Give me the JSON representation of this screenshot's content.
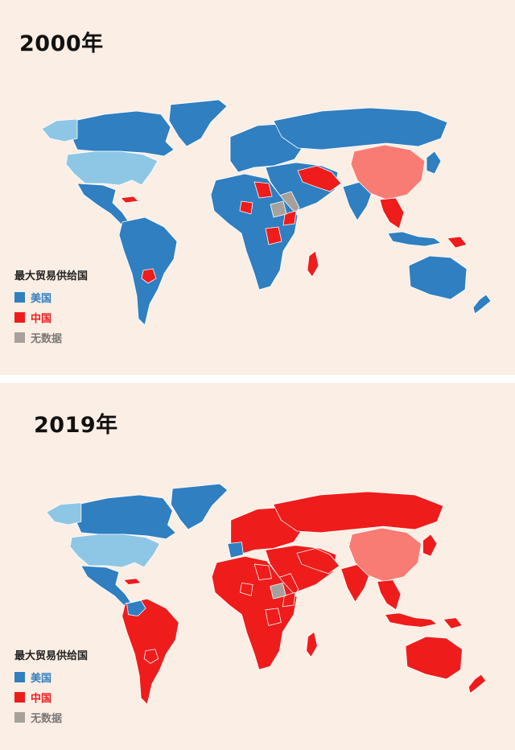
{
  "colors": {
    "usa": "#2f7fc1",
    "usa_self": "#8ec6e6",
    "china": "#ef1c1c",
    "china_self": "#f97c74",
    "no_data": "#a6a19c",
    "background": "#fbeee4"
  },
  "legend": {
    "title": "最大贸易供给国",
    "items": [
      {
        "label": "美国",
        "color": "#2f7fc1",
        "text_color": "#2f7fc1"
      },
      {
        "label": "中国",
        "color": "#ef1c1c",
        "text_color": "#ef1c1c"
      },
      {
        "label": "无数据",
        "color": "#a6a19c",
        "text_color": "#777777"
      }
    ]
  },
  "maps": [
    {
      "year_label": "2000年",
      "regions": {
        "north_america": "usa",
        "canada_greenland": "usa",
        "alaska": "usa_self",
        "usa_mainland": "usa_self",
        "central_america": "usa",
        "cuba": "china",
        "south_america": "usa",
        "paraguay": "china",
        "europe": "usa",
        "russia": "usa",
        "middle_east": "usa",
        "iran_region": "china",
        "saudi": "no_data",
        "africa": "usa",
        "africa_china_spots": "china",
        "africa_nodata": "no_data",
        "madagascar": "china",
        "india": "usa",
        "china": "china_self",
        "southeast_asia": "china",
        "japan_korea": "usa",
        "indonesia": "usa",
        "png": "china",
        "australia": "usa",
        "new_zealand": "usa"
      }
    },
    {
      "year_label": "2019年",
      "regions": {
        "north_america": "usa",
        "canada_greenland": "usa",
        "alaska": "usa_self",
        "usa_mainland": "usa_self",
        "central_america": "usa",
        "cuba": "china",
        "south_america": "china",
        "colombia_region": "usa",
        "paraguay": "china",
        "europe": "china",
        "iberia": "usa",
        "russia": "china",
        "middle_east": "china",
        "iran_region": "china",
        "saudi": "china",
        "africa": "china",
        "africa_china_spots": "china",
        "africa_nodata": "no_data",
        "madagascar": "china",
        "india": "china",
        "china": "china_self",
        "southeast_asia": "china",
        "japan_korea": "china",
        "indonesia": "china",
        "png": "china",
        "australia": "china",
        "new_zealand": "china"
      }
    }
  ]
}
